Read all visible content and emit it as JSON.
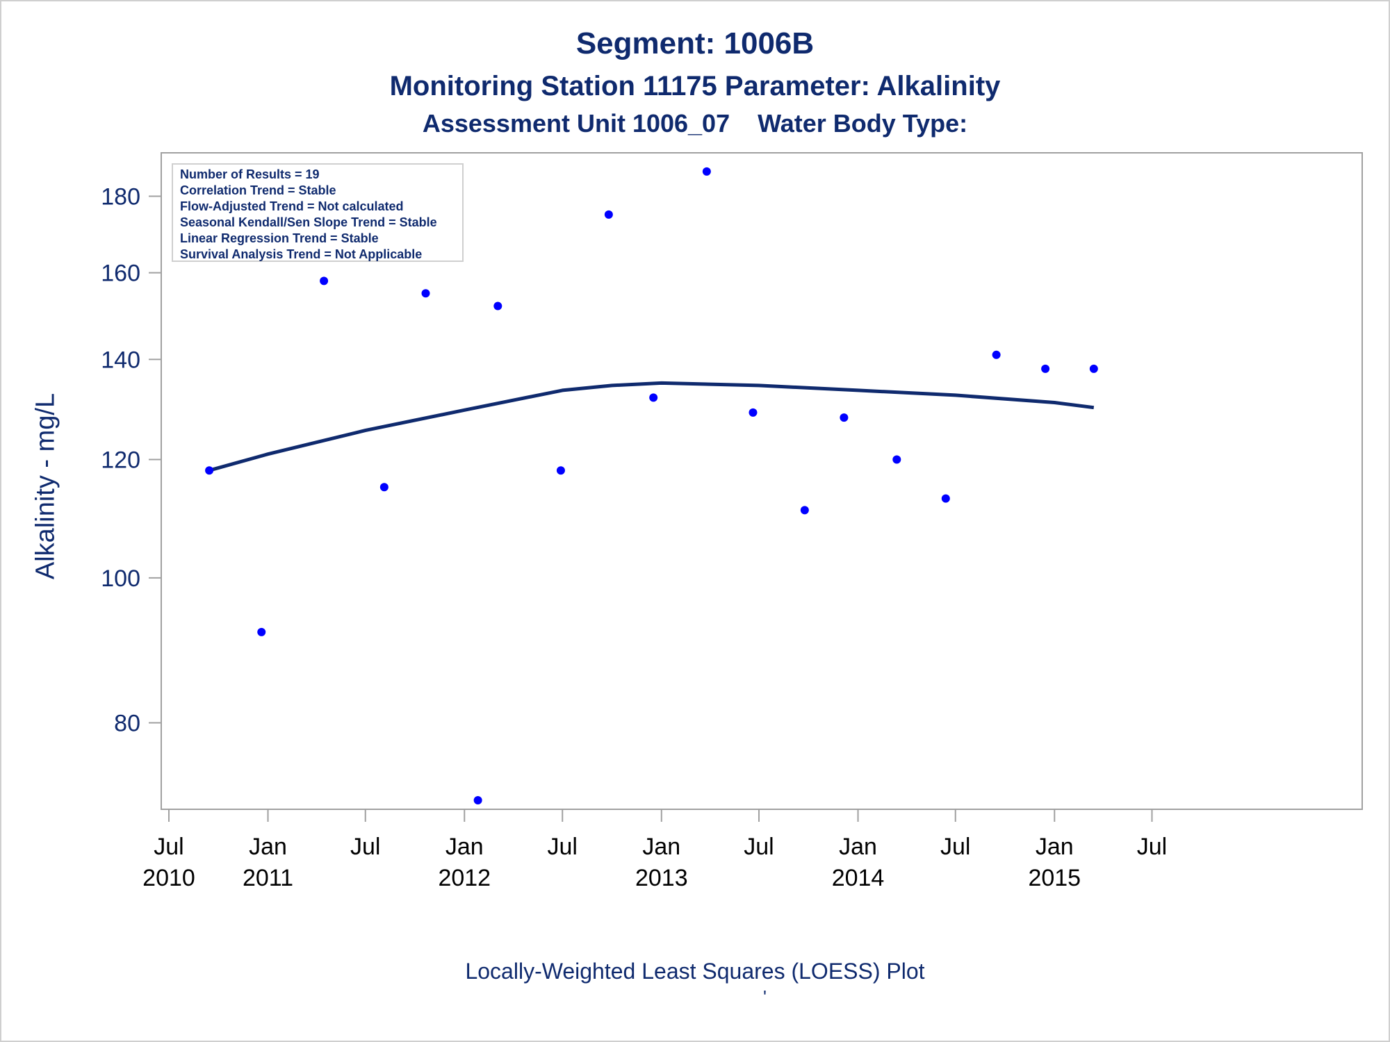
{
  "header": {
    "title": "Segment: 1006B",
    "subtitle": "Monitoring Station 11175 Parameter: Alkalinity",
    "subtitle2": "Assessment Unit 1006_07    Water Body Type:"
  },
  "stats_box": [
    "Number of Results = 19",
    "Correlation Trend = Stable",
    "Flow-Adjusted Trend = Not calculated",
    "Seasonal Kendall/Sen Slope Trend = Stable",
    "Linear Regression Trend = Stable",
    "Survival Analysis Trend = Not Applicable"
  ],
  "footer": {
    "caption": "Locally-Weighted Least Squares (LOESS) Plot",
    "mark": "'"
  },
  "colors": {
    "text": "#0f2a6e",
    "points": "#0000ff",
    "line": "#0f2a6e",
    "axis": "#a0a0a0"
  },
  "chart_data": {
    "type": "scatter",
    "title": "Segment: 1006B",
    "xlabel": "",
    "ylabel": "Alkalinity - mg/L",
    "y_scale": "log",
    "ylim": [
      71,
      190
    ],
    "xlim": [
      "2010-07-01",
      "2016-07-01"
    ],
    "grid": false,
    "x_ticks": [
      {
        "date": "2010-07-01",
        "line1": "Jul",
        "line2": "2010"
      },
      {
        "date": "2011-01-01",
        "line1": "Jan",
        "line2": "2011"
      },
      {
        "date": "2011-07-01",
        "line1": "Jul",
        "line2": ""
      },
      {
        "date": "2012-01-01",
        "line1": "Jan",
        "line2": "2012"
      },
      {
        "date": "2012-07-01",
        "line1": "Jul",
        "line2": ""
      },
      {
        "date": "2013-01-01",
        "line1": "Jan",
        "line2": "2013"
      },
      {
        "date": "2013-07-01",
        "line1": "Jul",
        "line2": ""
      },
      {
        "date": "2014-01-01",
        "line1": "Jan",
        "line2": "2014"
      },
      {
        "date": "2014-07-01",
        "line1": "Jul",
        "line2": ""
      },
      {
        "date": "2015-01-01",
        "line1": "Jan",
        "line2": "2015"
      },
      {
        "date": "2015-07-01",
        "line1": "Jul",
        "line2": ""
      }
    ],
    "y_ticks": [
      80,
      100,
      120,
      140,
      160,
      180
    ],
    "series": [
      {
        "type": "scatter",
        "points": [
          {
            "x": "2010-09-14",
            "y": 118
          },
          {
            "x": "2010-12-20",
            "y": 92
          },
          {
            "x": "2011-04-15",
            "y": 158
          },
          {
            "x": "2011-08-05",
            "y": 115
          },
          {
            "x": "2011-10-21",
            "y": 155
          },
          {
            "x": "2012-01-26",
            "y": 71
          },
          {
            "x": "2012-03-03",
            "y": 152
          },
          {
            "x": "2012-06-28",
            "y": 118
          },
          {
            "x": "2012-09-25",
            "y": 175
          },
          {
            "x": "2012-12-17",
            "y": 132
          },
          {
            "x": "2013-03-26",
            "y": 187
          },
          {
            "x": "2013-06-20",
            "y": 129
          },
          {
            "x": "2013-09-24",
            "y": 111
          },
          {
            "x": "2013-12-06",
            "y": 128
          },
          {
            "x": "2014-03-14",
            "y": 120
          },
          {
            "x": "2014-06-13",
            "y": 113
          },
          {
            "x": "2014-09-15",
            "y": 141
          },
          {
            "x": "2014-12-15",
            "y": 138
          },
          {
            "x": "2015-03-15",
            "y": 138
          }
        ]
      },
      {
        "type": "line",
        "points": [
          {
            "x": "2010-09-14",
            "y": 118
          },
          {
            "x": "2011-01-01",
            "y": 121
          },
          {
            "x": "2011-07-01",
            "y": 125.5
          },
          {
            "x": "2012-01-01",
            "y": 129.5
          },
          {
            "x": "2012-07-01",
            "y": 133.5
          },
          {
            "x": "2012-10-01",
            "y": 134.5
          },
          {
            "x": "2013-01-01",
            "y": 135
          },
          {
            "x": "2013-07-01",
            "y": 134.5
          },
          {
            "x": "2014-01-01",
            "y": 133.5
          },
          {
            "x": "2014-07-01",
            "y": 132.5
          },
          {
            "x": "2015-01-01",
            "y": 131
          },
          {
            "x": "2015-03-15",
            "y": 130
          }
        ]
      }
    ]
  }
}
